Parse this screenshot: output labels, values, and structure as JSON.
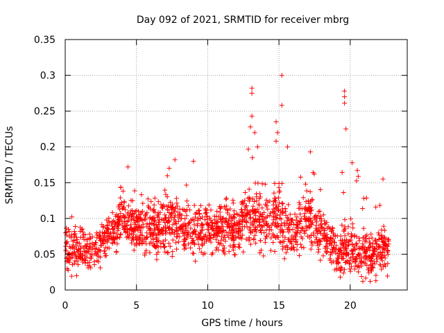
{
  "chart_data": {
    "type": "scatter",
    "title": "Day 092 of 2021, SRMTID for receiver mbrg",
    "xlabel": "GPS time / hours",
    "ylabel": "SRMTID / TECUs",
    "xlim": [
      0,
      24
    ],
    "ylim": [
      0,
      0.35
    ],
    "x_ticks": [
      0,
      5,
      10,
      15,
      20
    ],
    "x_tick_labels": [
      "0",
      "5",
      "10",
      "15",
      "20"
    ],
    "y_ticks": [
      0,
      0.05,
      0.1,
      0.15,
      0.2,
      0.25,
      0.3,
      0.35
    ],
    "y_tick_labels": [
      "0",
      "0.05",
      "0.1",
      "0.15",
      "0.2",
      "0.25",
      "0.3",
      "0.35"
    ],
    "grid": true,
    "marker": "plus",
    "series": [
      {
        "name": "SRMTID",
        "color": "#ff0000",
        "points_total": 1800,
        "approx_envelope": [
          {
            "x": 0.0,
            "median": 0.06,
            "spread": 0.02,
            "max": 0.12
          },
          {
            "x": 1.0,
            "median": 0.055,
            "spread": 0.015,
            "max": 0.09
          },
          {
            "x": 2.0,
            "median": 0.055,
            "spread": 0.015,
            "max": 0.09
          },
          {
            "x": 3.0,
            "median": 0.075,
            "spread": 0.02,
            "max": 0.14
          },
          {
            "x": 4.0,
            "median": 0.1,
            "spread": 0.02,
            "max": 0.17
          },
          {
            "x": 5.0,
            "median": 0.085,
            "spread": 0.02,
            "max": 0.14
          },
          {
            "x": 6.0,
            "median": 0.085,
            "spread": 0.02,
            "max": 0.13
          },
          {
            "x": 7.0,
            "median": 0.09,
            "spread": 0.025,
            "max": 0.17
          },
          {
            "x": 8.0,
            "median": 0.09,
            "spread": 0.02,
            "max": 0.16
          },
          {
            "x": 9.0,
            "median": 0.085,
            "spread": 0.02,
            "max": 0.18
          },
          {
            "x": 10.0,
            "median": 0.085,
            "spread": 0.02,
            "max": 0.14
          },
          {
            "x": 11.0,
            "median": 0.09,
            "spread": 0.02,
            "max": 0.14
          },
          {
            "x": 12.0,
            "median": 0.085,
            "spread": 0.02,
            "max": 0.13
          },
          {
            "x": 13.0,
            "median": 0.1,
            "spread": 0.025,
            "max": 0.28
          },
          {
            "x": 14.0,
            "median": 0.1,
            "spread": 0.025,
            "max": 0.2
          },
          {
            "x": 15.0,
            "median": 0.1,
            "spread": 0.03,
            "max": 0.3
          },
          {
            "x": 16.0,
            "median": 0.075,
            "spread": 0.02,
            "max": 0.13
          },
          {
            "x": 17.0,
            "median": 0.1,
            "spread": 0.025,
            "max": 0.19
          },
          {
            "x": 18.0,
            "median": 0.08,
            "spread": 0.02,
            "max": 0.14
          },
          {
            "x": 19.0,
            "median": 0.055,
            "spread": 0.02,
            "max": 0.1
          },
          {
            "x": 19.7,
            "median": 0.06,
            "spread": 0.02,
            "max": 0.28
          },
          {
            "x": 20.0,
            "median": 0.06,
            "spread": 0.02,
            "max": 0.2
          },
          {
            "x": 21.0,
            "median": 0.05,
            "spread": 0.02,
            "max": 0.14
          },
          {
            "x": 22.0,
            "median": 0.05,
            "spread": 0.02,
            "max": 0.15
          },
          {
            "x": 22.7,
            "median": 0.06,
            "spread": 0.02,
            "max": 0.09
          }
        ],
        "notable_points": [
          {
            "x": 15.2,
            "y": 0.3
          },
          {
            "x": 13.1,
            "y": 0.282
          },
          {
            "x": 13.1,
            "y": 0.275
          },
          {
            "x": 19.6,
            "y": 0.278
          },
          {
            "x": 19.6,
            "y": 0.27
          },
          {
            "x": 19.6,
            "y": 0.261
          },
          {
            "x": 15.2,
            "y": 0.258
          },
          {
            "x": 13.1,
            "y": 0.243
          },
          {
            "x": 14.8,
            "y": 0.235
          },
          {
            "x": 13.0,
            "y": 0.228
          },
          {
            "x": 19.7,
            "y": 0.225
          },
          {
            "x": 13.3,
            "y": 0.22
          },
          {
            "x": 14.9,
            "y": 0.22
          },
          {
            "x": 14.8,
            "y": 0.208
          },
          {
            "x": 13.5,
            "y": 0.2
          },
          {
            "x": 15.6,
            "y": 0.2
          },
          {
            "x": 17.2,
            "y": 0.193
          },
          {
            "x": 7.7,
            "y": 0.182
          },
          {
            "x": 9.0,
            "y": 0.18
          },
          {
            "x": 4.4,
            "y": 0.172
          },
          {
            "x": 7.3,
            "y": 0.17
          },
          {
            "x": 22.3,
            "y": 0.155
          },
          {
            "x": 0.8,
            "y": 0.02
          },
          {
            "x": 19.3,
            "y": 0.018
          },
          {
            "x": 21.4,
            "y": 0.012
          },
          {
            "x": 21.8,
            "y": 0.013
          }
        ]
      }
    ]
  }
}
